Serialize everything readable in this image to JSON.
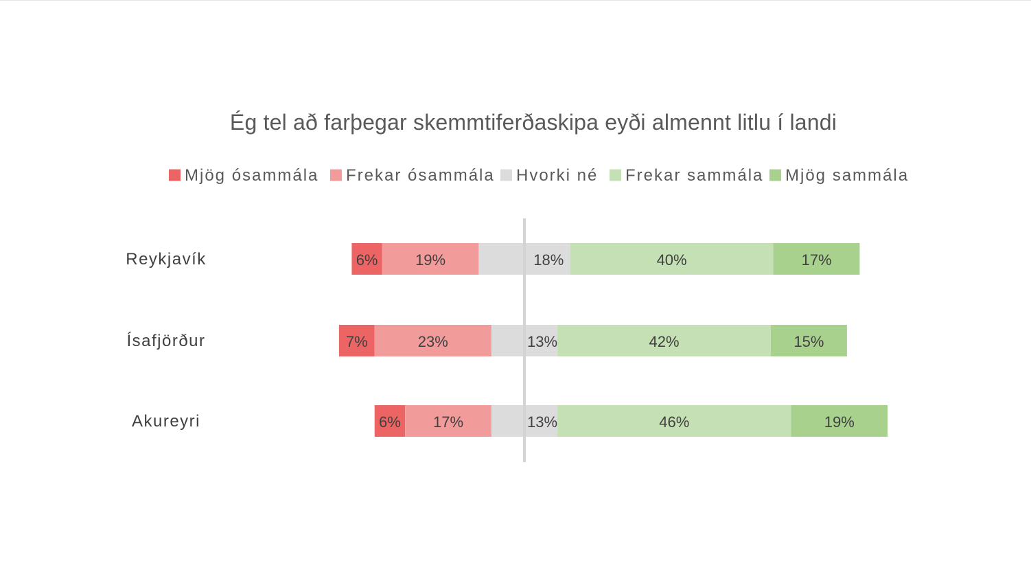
{
  "chart_data": {
    "type": "bar",
    "orientation": "horizontal",
    "stacked": "diverging",
    "title": "Ég tel að farþegar skemmtiferðaskipa eyði almennt litlu í landi",
    "categories": [
      "Reykjavík",
      "Ísafjörður",
      "Akureyri"
    ],
    "series": [
      {
        "name": "Mjög ósammála",
        "color": "#ed6464",
        "values": [
          6,
          7,
          6
        ],
        "labels": [
          "6%",
          "7%",
          "6%"
        ]
      },
      {
        "name": "Frekar ósammála",
        "color": "#f29b9b",
        "values": [
          19,
          23,
          17
        ],
        "labels": [
          "19%",
          "23%",
          "17%"
        ]
      },
      {
        "name": "Hvorki né",
        "color": "#dcdcdc",
        "values": [
          18,
          13,
          13
        ],
        "labels": [
          "18%",
          "13%",
          "13%"
        ]
      },
      {
        "name": "Frekar sammála",
        "color": "#c5e0b4",
        "values": [
          40,
          42,
          46
        ],
        "labels": [
          "40%",
          "42%",
          "46%"
        ]
      },
      {
        "name": "Mjög sammála",
        "color": "#a9d18e",
        "values": [
          17,
          15,
          19
        ],
        "labels": [
          "17%",
          "15%",
          "19%"
        ]
      }
    ],
    "neutral_series": "Hvorki né",
    "legend_position": "top",
    "grid": false
  },
  "colors": {
    "center_line": "#d4d4d4",
    "title": "#595959",
    "text": "#404040"
  }
}
